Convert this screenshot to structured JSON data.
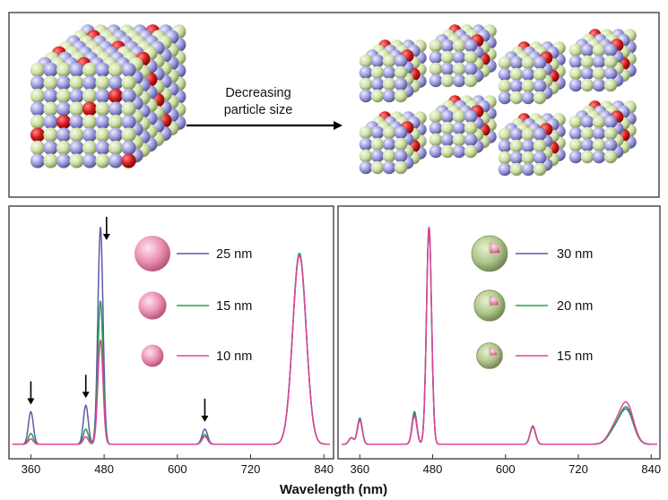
{
  "top_panel": {
    "arrow_label_line1": "Decreasing",
    "arrow_label_line2": "particle size"
  },
  "chart_data": [
    {
      "type": "line",
      "xlabel": "Wavelength (nm)",
      "ylabel": "",
      "title": "",
      "xlim": [
        330,
        850
      ],
      "ylim": [
        0,
        1
      ],
      "xticks": [
        360,
        480,
        600,
        720,
        840
      ],
      "grid": false,
      "legend_position": "top-center",
      "peak_markers_x": [
        360,
        450,
        484,
        645
      ],
      "series": [
        {
          "name": "25 nm",
          "color": "#5b5ba8",
          "legend_icon": "solid-sphere",
          "icon_size": 1.0,
          "peaks": [
            [
              360,
              0.15
            ],
            [
              450,
              0.18
            ],
            [
              474,
              1.0
            ],
            [
              645,
              0.07
            ],
            [
              800,
              0.88
            ]
          ]
        },
        {
          "name": "15 nm",
          "color": "#23a24d",
          "legend_icon": "solid-sphere",
          "icon_size": 0.78,
          "peaks": [
            [
              360,
              0.05
            ],
            [
              450,
              0.07
            ],
            [
              474,
              0.66
            ],
            [
              645,
              0.045
            ],
            [
              800,
              0.88
            ]
          ]
        },
        {
          "name": "10 nm",
          "color": "#e0429a",
          "legend_icon": "solid-sphere",
          "icon_size": 0.62,
          "peaks": [
            [
              360,
              0.025
            ],
            [
              450,
              0.035
            ],
            [
              474,
              0.48
            ],
            [
              645,
              0.035
            ],
            [
              800,
              0.87
            ]
          ]
        }
      ]
    },
    {
      "type": "line",
      "xlabel": "",
      "ylabel": "",
      "title": "",
      "xlim": [
        330,
        850
      ],
      "ylim": [
        0,
        1
      ],
      "xticks": [
        360,
        480,
        600,
        720,
        840
      ],
      "grid": false,
      "legend_position": "top-center",
      "series": [
        {
          "name": "30 nm",
          "color": "#5b5ba8",
          "legend_icon": "core-shell-sphere",
          "icon_size": 1.0,
          "peaks": [
            [
              346,
              0.03
            ],
            [
              360,
              0.12
            ],
            [
              450,
              0.15
            ],
            [
              474,
              1.0
            ],
            [
              645,
              0.08
            ],
            [
              780,
              0.06
            ],
            [
              800,
              0.15
            ]
          ]
        },
        {
          "name": "20 nm",
          "color": "#23a24d",
          "legend_icon": "core-shell-sphere",
          "icon_size": 0.86,
          "peaks": [
            [
              346,
              0.03
            ],
            [
              360,
              0.115
            ],
            [
              450,
              0.14
            ],
            [
              474,
              1.0
            ],
            [
              645,
              0.08
            ],
            [
              780,
              0.06
            ],
            [
              800,
              0.16
            ]
          ]
        },
        {
          "name": "15 nm",
          "color": "#e0429a",
          "legend_icon": "core-shell-sphere",
          "icon_size": 0.72,
          "peaks": [
            [
              346,
              0.03
            ],
            [
              360,
              0.11
            ],
            [
              450,
              0.13
            ],
            [
              474,
              1.0
            ],
            [
              645,
              0.085
            ],
            [
              780,
              0.07
            ],
            [
              800,
              0.18
            ]
          ]
        }
      ]
    }
  ]
}
